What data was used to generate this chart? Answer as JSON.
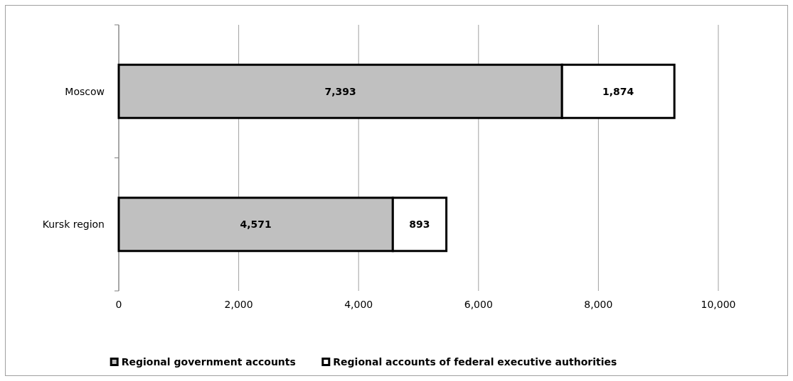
{
  "chart_data": {
    "type": "bar",
    "orientation": "horizontal",
    "stacked": true,
    "categories": [
      "Moscow",
      "Kursk region"
    ],
    "series": [
      {
        "name": "Regional government accounts",
        "color": "#c0c0c0",
        "values": [
          7393,
          4571
        ],
        "value_labels": [
          "7,393",
          "4,571"
        ]
      },
      {
        "name": "Regional accounts of federal executive authorities",
        "color": "#ffffff",
        "values": [
          1874,
          893
        ],
        "value_labels": [
          "1,874",
          "893"
        ]
      }
    ],
    "xlim": [
      0,
      10000
    ],
    "xticks": [
      0,
      {
        "value": 2000,
        "label": "2,000"
      },
      {
        "value": 4000,
        "label": "4,000"
      },
      {
        "value": 6000,
        "label": "6,000"
      },
      {
        "value": 8000,
        "label": "8,000"
      },
      {
        "value": 10000,
        "label": "10,000"
      }
    ],
    "grid": "x",
    "legend": "bottom"
  }
}
